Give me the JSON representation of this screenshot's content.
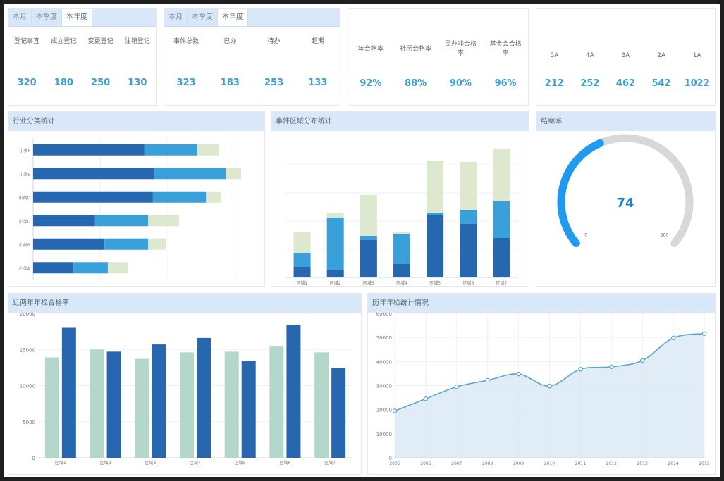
{
  "summary1": {
    "tabs": [
      "本月",
      "本季度",
      "本年度"
    ],
    "active_tab": 2,
    "labels": [
      "登记事宜",
      "成立登记",
      "变更登记",
      "注销登记"
    ],
    "values": [
      "320",
      "180",
      "250",
      "130"
    ]
  },
  "summary2": {
    "tabs": [
      "本月",
      "本季度",
      "本年度"
    ],
    "active_tab": 2,
    "labels": [
      "事件总数",
      "已办",
      "待办",
      "超期"
    ],
    "values": [
      "323",
      "183",
      "253",
      "133"
    ]
  },
  "summary3": {
    "labels": [
      "年合格率",
      "社团合格率",
      "民办非合格率",
      "基金会合格率"
    ],
    "values": [
      "92%",
      "88%",
      "90%",
      "96%"
    ]
  },
  "summary4": {
    "labels": [
      "5A",
      "4A",
      "3A",
      "2A",
      "1A"
    ],
    "values": [
      "212",
      "252",
      "462",
      "542",
      "1022"
    ]
  },
  "panels": {
    "industry_title": "行业分类统计",
    "region_title": "事件区域分布统计",
    "closing_title": "结案率",
    "biennial_title": "近两年年检合格率",
    "history_title": "历年年检统计情况"
  },
  "colors": {
    "dark_blue": "#2767b0",
    "mid_blue": "#3aa0da",
    "pale_green": "#dde8cf",
    "mint": "#b3d7ca",
    "gauge_blue": "#1e9af0",
    "gauge_track": "#d8d8d8",
    "line": "#5aa6d0",
    "area": "#d8e9f4",
    "value_text": "#3ba0d6"
  },
  "chart_data": [
    {
      "type": "bar",
      "orientation": "horizontal",
      "stacked": true,
      "categories": [
        "小类F",
        "小类E",
        "小类D",
        "小类C",
        "小类B",
        "小类A"
      ],
      "series": [
        {
          "values": [
            165,
            180,
            178,
            92,
            106,
            60
          ]
        },
        {
          "values": [
            79,
            106,
            79,
            79,
            65,
            51
          ]
        },
        {
          "values": [
            32,
            23,
            22,
            46,
            26,
            30
          ]
        }
      ],
      "xlim": [
        0,
        330
      ]
    },
    {
      "type": "bar",
      "stacked": true,
      "categories": [
        "区域1",
        "区域2",
        "区域3",
        "区域4",
        "区域5",
        "区域6",
        "区域7"
      ],
      "series": [
        {
          "values": [
            15,
            11,
            53,
            19,
            88,
            76,
            56
          ]
        },
        {
          "values": [
            20,
            74,
            6,
            43,
            4,
            20,
            52
          ]
        },
        {
          "values": [
            30,
            7,
            58,
            2,
            74,
            68,
            75
          ]
        }
      ],
      "ylim": [
        0,
        190
      ]
    },
    {
      "type": "gauge",
      "value": 74,
      "min": 0,
      "max": 180,
      "min_label": "0",
      "max_label": "180"
    },
    {
      "type": "bar",
      "categories": [
        "区域1",
        "区域2",
        "区域3",
        "区域4",
        "区域5",
        "区域6",
        "区域7"
      ],
      "series": [
        {
          "values": [
            13900,
            15000,
            13700,
            14600,
            14700,
            15400,
            14600
          ]
        },
        {
          "values": [
            18000,
            14700,
            15700,
            16600,
            13400,
            18400,
            12400
          ]
        }
      ],
      "yticks": [
        "0",
        "5000",
        "10000",
        "15000",
        "20000"
      ],
      "ylim": [
        0,
        20000
      ]
    },
    {
      "type": "area",
      "x": [
        "2005",
        "2006",
        "2007",
        "2008",
        "2009",
        "2010",
        "2011",
        "2012",
        "2013",
        "2014",
        "2015"
      ],
      "values": [
        19500,
        24500,
        29500,
        32200,
        34800,
        29800,
        36800,
        37800,
        40400,
        49800,
        51600
      ],
      "yticks": [
        "0",
        "10000",
        "20000",
        "30000",
        "40000",
        "50000",
        "60000"
      ],
      "ylim": [
        0,
        60000
      ]
    }
  ]
}
